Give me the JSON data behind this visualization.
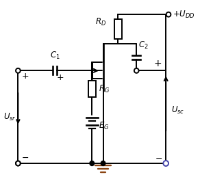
{
  "bg_color": "#ffffff",
  "line_color": "#000000",
  "ground_color": "#8B4513",
  "dot_color": "#000000",
  "circle_color": "#4444aa"
}
